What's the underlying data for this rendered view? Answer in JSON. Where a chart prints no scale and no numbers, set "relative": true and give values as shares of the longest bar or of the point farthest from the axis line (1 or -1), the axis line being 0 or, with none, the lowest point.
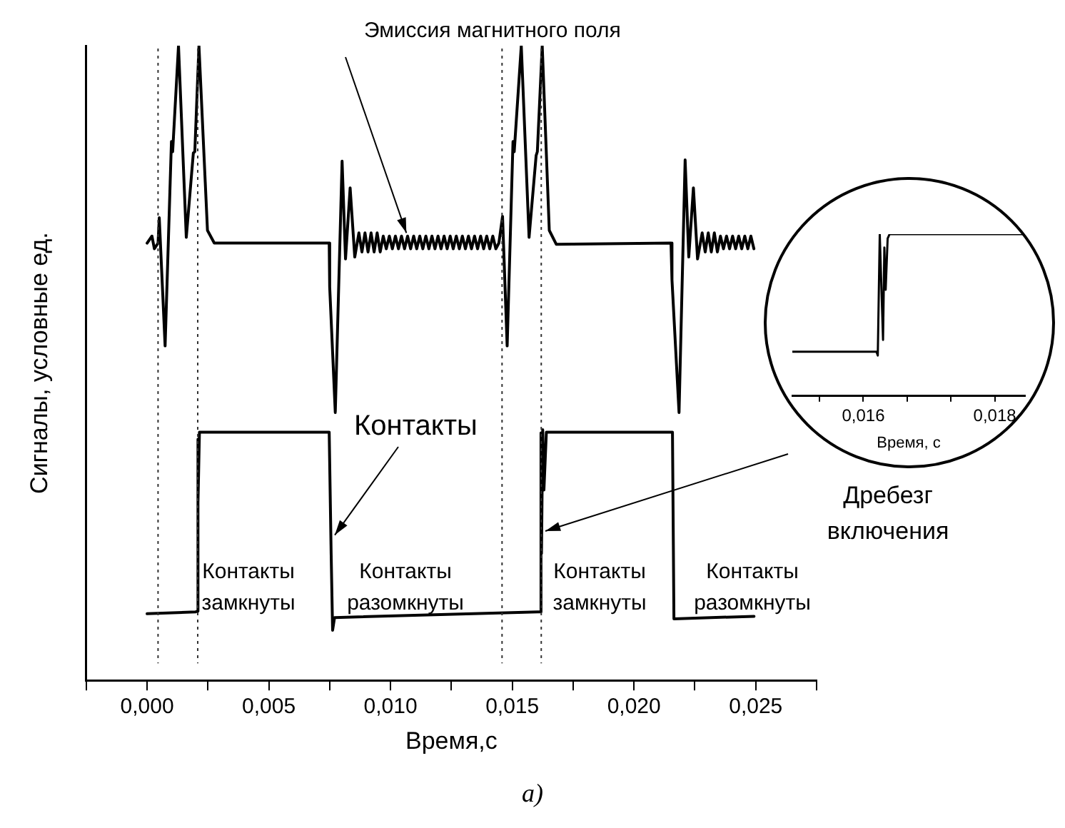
{
  "chart_data": [
    {
      "type": "line",
      "relative": true,
      "xlabel": "Время,с",
      "ylabel": "Сигналы, условные ед.",
      "xlim": [
        -0.0025,
        0.0275
      ],
      "xticks": [
        {
          "value": -0.0025,
          "label": null
        },
        {
          "value": 0,
          "label": "0,000"
        },
        {
          "value": 0.0025,
          "label": null
        },
        {
          "value": 0.005,
          "label": "0,005"
        },
        {
          "value": 0.0075,
          "label": null
        },
        {
          "value": 0.01,
          "label": "0,010"
        },
        {
          "value": 0.0125,
          "label": null
        },
        {
          "value": 0.015,
          "label": "0,015"
        },
        {
          "value": 0.0175,
          "label": null
        },
        {
          "value": 0.02,
          "label": "0,020"
        },
        {
          "value": 0.0225,
          "label": null
        },
        {
          "value": 0.025,
          "label": "0,025"
        },
        {
          "value": 0.0275,
          "label": null
        }
      ],
      "line_style": "solid",
      "marker": "none",
      "grid": false,
      "legend": false,
      "series": [
        {
          "color": "#000000",
          "x": [
            0,
            0.0002,
            0.0003,
            0.00045,
            0.0005,
            0.00074,
            0.001,
            0.00105,
            0.00129,
            0.00161,
            0.0019,
            0.00196,
            0.00213,
            0.00248,
            0.00276,
            0.00748,
            0.0075,
            0.00773,
            0.00801,
            0.00815,
            0.00834,
            0.00853,
            0.0087,
            0.008825,
            0.00895,
            0.009075,
            0.0092,
            0.009325,
            0.00945,
            0.009575,
            0.0097,
            0.009825,
            0.00995,
            0.010075,
            0.0102,
            0.010325,
            0.01045,
            0.010575,
            0.0107,
            0.010825,
            0.01095,
            0.011075,
            0.0112,
            0.011325,
            0.01145,
            0.011575,
            0.0117,
            0.011825,
            0.01195,
            0.012075,
            0.0122,
            0.012325,
            0.01245,
            0.012575,
            0.0127,
            0.012825,
            0.01295,
            0.013075,
            0.0132,
            0.013325,
            0.01345,
            0.013575,
            0.0137,
            0.013825,
            0.01395,
            0.014075,
            0.0142,
            0.014325,
            0.01445,
            0.0146,
            0.01479,
            0.01503,
            0.01508,
            0.01537,
            0.01569,
            0.01598,
            0.01603,
            0.01623,
            0.01652,
            0.01681,
            0.02152,
            0.02156,
            0.02185,
            0.0221,
            0.02225,
            0.02244,
            0.02261,
            0.0228,
            0.022925,
            0.02305,
            0.023175,
            0.0233,
            0.023425,
            0.02355,
            0.023675,
            0.0238,
            0.023925,
            0.02405,
            0.024175,
            0.0243,
            0.024425,
            0.02455,
            0.024675,
            0.0248,
            0.024925
          ],
          "values": [
            0.689,
            0.7,
            0.68,
            0.689,
            0.729,
            0.527,
            0.849,
            0.833,
            1.0,
            0.698,
            0.831,
            0.833,
            1.0,
            0.709,
            0.689,
            0.689,
            0.62,
            0.422,
            0.818,
            0.664,
            0.776,
            0.667,
            0.705,
            0.675,
            0.705,
            0.675,
            0.705,
            0.675,
            0.705,
            0.675,
            0.7,
            0.68,
            0.7,
            0.68,
            0.7,
            0.68,
            0.7,
            0.68,
            0.7,
            0.68,
            0.7,
            0.68,
            0.7,
            0.68,
            0.7,
            0.68,
            0.7,
            0.68,
            0.7,
            0.68,
            0.7,
            0.68,
            0.7,
            0.68,
            0.7,
            0.68,
            0.7,
            0.68,
            0.7,
            0.68,
            0.7,
            0.68,
            0.7,
            0.68,
            0.7,
            0.68,
            0.7,
            0.68,
            0.689,
            0.731,
            0.527,
            0.849,
            0.833,
            1.0,
            0.698,
            0.827,
            0.833,
            1.0,
            0.709,
            0.687,
            0.689,
            0.631,
            0.422,
            0.82,
            0.667,
            0.776,
            0.664,
            0.705,
            0.675,
            0.705,
            0.675,
            0.705,
            0.675,
            0.7,
            0.68,
            0.7,
            0.68,
            0.7,
            0.68,
            0.7,
            0.68,
            0.7,
            0.68,
            0.7,
            0.68
          ]
        },
        {
          "color": "#000000",
          "x": [
            0,
            0.002,
            0.00206,
            0.00208,
            0.0021,
            0.00215,
            0.00222,
            0.00748,
            0.00756,
            0.00762,
            0.0077,
            0.01605,
            0.01613,
            0.01618,
            0.0162,
            0.01625,
            0.0163,
            0.0164,
            0.02158,
            0.02164,
            0.02493
          ],
          "values": [
            0.105,
            0.108,
            0.109,
            0.38,
            0.28,
            0.391,
            0.391,
            0.391,
            0.2,
            0.079,
            0.099,
            0.108,
            0.108,
            0.39,
            0.2,
            0.395,
            0.3,
            0.391,
            0.391,
            0.097,
            0.101
          ]
        }
      ],
      "ref_lines": [
        {
          "axis": "x",
          "value": 0.00045,
          "label": null,
          "color": "#333333",
          "line_style": "dotted"
        },
        {
          "axis": "x",
          "value": 0.00208,
          "label": null,
          "color": "#333333",
          "line_style": "dotted"
        },
        {
          "axis": "x",
          "value": 0.01458,
          "label": null,
          "color": "#333333",
          "line_style": "dotted"
        },
        {
          "axis": "x",
          "value": 0.01619,
          "label": null,
          "color": "#333333",
          "line_style": "dotted"
        }
      ],
      "annotations": [
        {
          "text": "Эмиссия магнитного поля",
          "x": 0.01065,
          "y": 0.705
        },
        {
          "text": "Контакты",
          "x": 0.00771,
          "y": 0.229
        },
        "Дребезг включения",
        "Контакты замкнуты",
        "Контакты разомкнуты",
        "Контакты замкнуты",
        "Контакты разомкнуты",
        "а)"
      ]
    },
    {
      "type": "line",
      "relative": true,
      "xlabel": "Время, с",
      "xlim": [
        0.01492,
        0.01846
      ],
      "xticks": [
        {
          "value": 0.01533,
          "label": null
        },
        {
          "value": 0.016,
          "label": "0,016"
        },
        {
          "value": 0.01667,
          "label": null
        },
        {
          "value": 0.01733,
          "label": null
        },
        {
          "value": 0.018,
          "label": "0,018"
        }
      ],
      "line_style": "solid",
      "marker": "none",
      "grid": false,
      "legend": false,
      "series": [
        {
          "color": "#000000",
          "x": [
            0.01492,
            0.0162,
            0.01622,
            0.01625,
            0.0163,
            0.01632,
            0.01634,
            0.01637,
            0.0164,
            0.01846
          ],
          "values": [
            0.274,
            0.274,
            0.25,
            1.0,
            0.346,
            0.917,
            0.656,
            0.973,
            1.0,
            1.0
          ]
        }
      ]
    }
  ]
}
